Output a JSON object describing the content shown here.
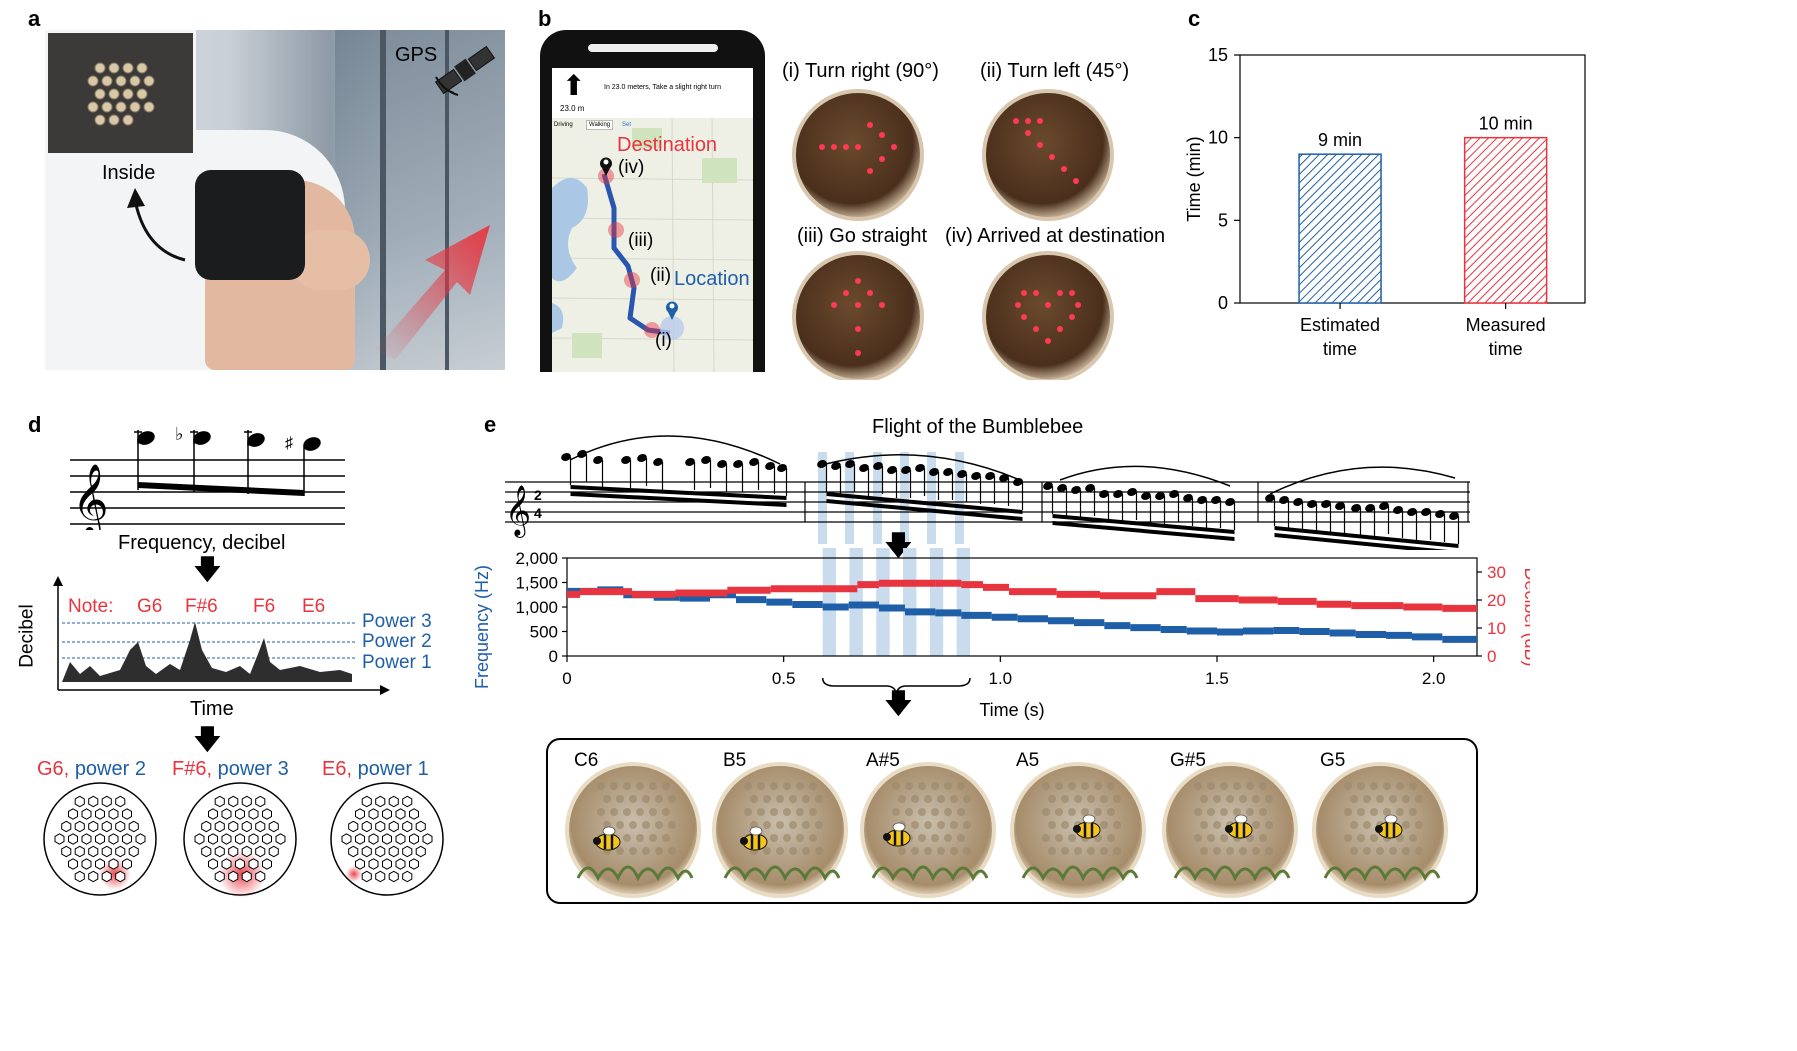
{
  "panels": {
    "a": "a",
    "b": "b",
    "c": "c",
    "d": "d",
    "e": "e"
  },
  "panel_a": {
    "gps": "GPS",
    "inside": "Inside"
  },
  "panel_b": {
    "distance": "23.0 m",
    "instruction": "In 23.0 meters, Take a slight right turn",
    "modes": [
      "Driving",
      "Walking",
      "Set"
    ],
    "destination": "Destination",
    "location": "Location",
    "markers": [
      "(i)",
      "(ii)",
      "(iii)",
      "(iv)"
    ],
    "turns": [
      "(i) Turn right (90°)",
      "(ii) Turn left (45°)",
      "(iii) Go straight",
      "(iv) Arrived at destination"
    ]
  },
  "panel_d": {
    "staff_caption": "Frequency, decibel",
    "note_prefix": "Note:",
    "notes": [
      "G6",
      "F#6",
      "F6",
      "E6"
    ],
    "powers": [
      "Power 3",
      "Power 2",
      "Power 1"
    ],
    "ylabel": "Decibel",
    "xlabel": "Time",
    "outputs": [
      {
        "note": "G6,",
        "power": "power 2"
      },
      {
        "note": "F#6,",
        "power": "power 3"
      },
      {
        "note": "E6,",
        "power": "power 1"
      }
    ],
    "flat": "♭",
    "sharp": "♯",
    "clef": "𝄞"
  },
  "panel_e": {
    "title": "Flight of the Bumblebee",
    "time_sig": [
      "2",
      "4"
    ],
    "notes": [
      "C6",
      "B5",
      "A#5",
      "A5",
      "G#5",
      "G5"
    ]
  },
  "colors": {
    "blue": "#1f5fa8",
    "red": "#e8343e",
    "highlight": "#c8dcee"
  },
  "chart_data": [
    {
      "type": "bar",
      "categories": [
        "Estimated time",
        "Measured time"
      ],
      "category_lines": [
        [
          "Estimated",
          "time"
        ],
        [
          "Measured",
          "time"
        ]
      ],
      "values": [
        9,
        10
      ],
      "data_labels": [
        "9 min",
        "10 min"
      ],
      "ylabel": "Time (min)",
      "ylim": [
        0,
        15
      ],
      "yticks": [
        0,
        5,
        10,
        15
      ],
      "colors": [
        "#1f5fa8",
        "#e8343e"
      ],
      "fill": "hatched"
    },
    {
      "type": "line",
      "xlabel": "Time (s)",
      "xlim": [
        0,
        2.1
      ],
      "xticks": [
        0,
        0.5,
        1.0,
        1.5,
        2.0
      ],
      "xtick_labels": [
        "0",
        "0.5",
        "1.0",
        "1.5",
        "2.0"
      ],
      "y_left": {
        "label": "Frequency (Hz)",
        "lim": [
          0,
          2000
        ],
        "ticks": [
          "0",
          "500",
          "1,000",
          "1,500",
          "2,000"
        ]
      },
      "y_right": {
        "label": "Decibel (dB)",
        "lim": [
          0,
          35
        ],
        "ticks": [
          "0",
          "10",
          "20",
          "30"
        ]
      },
      "highlight_x": [
        0.59,
        0.93
      ],
      "series": [
        {
          "name": "Frequency (Hz)",
          "axis": "left",
          "color": "#1f5fa8",
          "step_x": [
            0,
            0.07,
            0.13,
            0.2,
            0.26,
            0.33,
            0.39,
            0.46,
            0.52,
            0.59,
            0.65,
            0.72,
            0.78,
            0.85,
            0.91,
            0.98,
            1.04,
            1.11,
            1.17,
            1.24,
            1.3,
            1.37,
            1.43,
            1.5,
            1.56,
            1.63,
            1.69,
            1.76,
            1.82,
            1.89,
            1.95,
            2.02,
            2.1
          ],
          "values": [
            1320,
            1350,
            1250,
            1200,
            1180,
            1250,
            1150,
            1100,
            1050,
            1000,
            1040,
            980,
            900,
            880,
            830,
            790,
            760,
            720,
            680,
            620,
            580,
            540,
            510,
            490,
            510,
            520,
            500,
            470,
            440,
            420,
            390,
            340
          ]
        },
        {
          "name": "Decibel (dB)",
          "axis": "right",
          "color": "#e8343e",
          "step_x": [
            0,
            0.03,
            0.15,
            0.25,
            0.37,
            0.47,
            0.57,
            0.67,
            0.72,
            0.78,
            0.85,
            0.91,
            0.96,
            1.02,
            1.13,
            1.23,
            1.36,
            1.45,
            1.55,
            1.64,
            1.73,
            1.81,
            1.93,
            2.02,
            2.1
          ],
          "values": [
            22,
            23,
            22,
            22.5,
            23.5,
            24,
            24,
            25.5,
            26,
            26,
            26,
            25.5,
            24.5,
            23,
            22,
            21.5,
            23,
            20.5,
            20,
            19.5,
            18.5,
            18,
            17.5,
            17
          ]
        }
      ]
    }
  ]
}
